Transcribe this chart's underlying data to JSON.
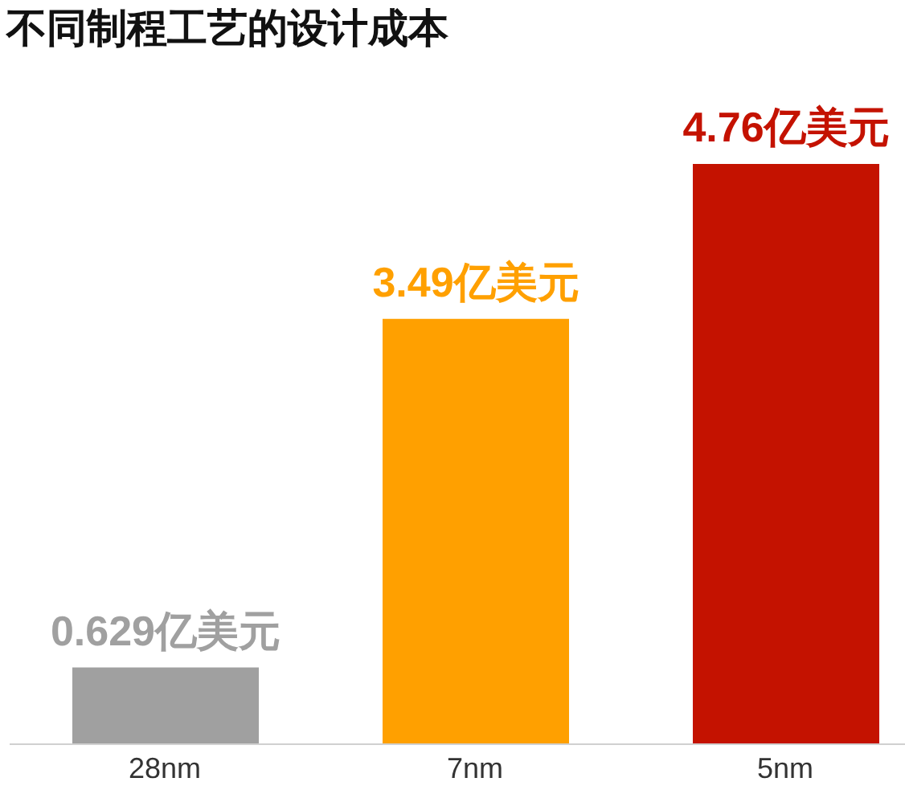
{
  "chart_data": {
    "type": "bar",
    "title": "不同制程工艺的设计成本",
    "categories": [
      "28nm",
      "7nm",
      "5nm"
    ],
    "values": [
      0.629,
      3.49,
      4.76
    ],
    "colors": [
      "#a0a0a0",
      "#ffa000",
      "#c41200"
    ],
    "value_labels": [
      "0.629亿美元",
      "3.49亿美元",
      "4.76亿美元"
    ]
  }
}
